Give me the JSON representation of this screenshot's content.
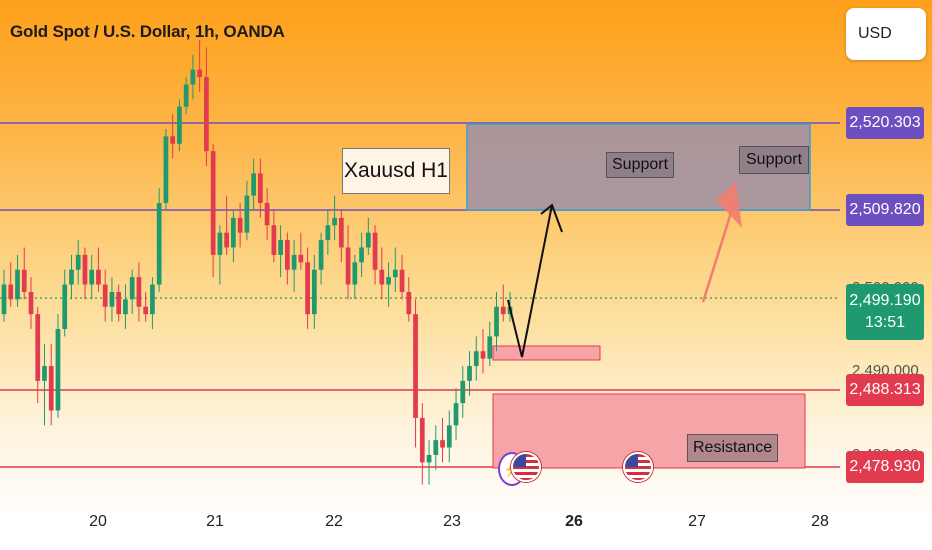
{
  "header": {
    "title": "Gold Spot / U.S. Dollar, 1h, OANDA",
    "currency_button": "USD"
  },
  "price_labels": {
    "level_1": "2,520.303",
    "level_2": "2,509.820",
    "current_price": "2,499.190",
    "countdown": "13:51",
    "level_3": "2,488.313",
    "level_4": "2,478.930",
    "faded_1": "2,500.000",
    "faded_2": "2,490.000",
    "faded_3": "2,480.000"
  },
  "annotations": {
    "main_label": "Xauusd H1",
    "support_1": "Support",
    "support_2": "Support",
    "resistance": "Resistance"
  },
  "colors": {
    "up_candle": "#1e9a6e",
    "down_candle": "#e23a4f",
    "purple_line": "#6e4fc0",
    "red_line": "#e23a4f"
  },
  "chart_data": {
    "type": "candlestick",
    "title": "Gold Spot / U.S. Dollar, 1h, OANDA",
    "x_tick_labels": [
      "20",
      "21",
      "22",
      "23",
      "26",
      "27",
      "28"
    ],
    "y_range": [
      2474,
      2535
    ],
    "horizontal_levels": [
      {
        "price": 2520.303,
        "color": "purple"
      },
      {
        "price": 2509.82,
        "color": "purple"
      },
      {
        "price": 2488.313,
        "color": "red"
      },
      {
        "price": 2478.93,
        "color": "red"
      }
    ],
    "current_price": 2499.19,
    "candles": [
      {
        "o": 2498,
        "h": 2504,
        "l": 2497,
        "c": 2502
      },
      {
        "o": 2502,
        "h": 2505,
        "l": 2499,
        "c": 2500
      },
      {
        "o": 2500,
        "h": 2506,
        "l": 2499,
        "c": 2504
      },
      {
        "o": 2504,
        "h": 2507,
        "l": 2500,
        "c": 2501
      },
      {
        "o": 2501,
        "h": 2503,
        "l": 2496,
        "c": 2498
      },
      {
        "o": 2498,
        "h": 2499,
        "l": 2486,
        "c": 2489
      },
      {
        "o": 2489,
        "h": 2494,
        "l": 2483,
        "c": 2491
      },
      {
        "o": 2491,
        "h": 2494,
        "l": 2483,
        "c": 2485
      },
      {
        "o": 2485,
        "h": 2498,
        "l": 2484,
        "c": 2496
      },
      {
        "o": 2496,
        "h": 2504,
        "l": 2495,
        "c": 2502
      },
      {
        "o": 2502,
        "h": 2506,
        "l": 2500,
        "c": 2504
      },
      {
        "o": 2504,
        "h": 2508,
        "l": 2502,
        "c": 2506
      },
      {
        "o": 2506,
        "h": 2507,
        "l": 2500,
        "c": 2502
      },
      {
        "o": 2502,
        "h": 2506,
        "l": 2500,
        "c": 2504
      },
      {
        "o": 2504,
        "h": 2507,
        "l": 2501,
        "c": 2502
      },
      {
        "o": 2502,
        "h": 2504,
        "l": 2497,
        "c": 2499
      },
      {
        "o": 2499,
        "h": 2503,
        "l": 2497,
        "c": 2501
      },
      {
        "o": 2501,
        "h": 2502,
        "l": 2497,
        "c": 2498
      },
      {
        "o": 2498,
        "h": 2502,
        "l": 2496,
        "c": 2500
      },
      {
        "o": 2500,
        "h": 2504,
        "l": 2498,
        "c": 2503
      },
      {
        "o": 2503,
        "h": 2505,
        "l": 2497,
        "c": 2499
      },
      {
        "o": 2499,
        "h": 2501,
        "l": 2497,
        "c": 2498
      },
      {
        "o": 2498,
        "h": 2503,
        "l": 2496,
        "c": 2502
      },
      {
        "o": 2502,
        "h": 2515,
        "l": 2501,
        "c": 2513
      },
      {
        "o": 2513,
        "h": 2523,
        "l": 2512,
        "c": 2522
      },
      {
        "o": 2522,
        "h": 2525,
        "l": 2519,
        "c": 2521
      },
      {
        "o": 2521,
        "h": 2527,
        "l": 2520,
        "c": 2526
      },
      {
        "o": 2526,
        "h": 2530,
        "l": 2525,
        "c": 2529
      },
      {
        "o": 2529,
        "h": 2533,
        "l": 2527,
        "c": 2531
      },
      {
        "o": 2531,
        "h": 2535,
        "l": 2528,
        "c": 2530
      },
      {
        "o": 2530,
        "h": 2534,
        "l": 2518,
        "c": 2520
      },
      {
        "o": 2520,
        "h": 2521,
        "l": 2503,
        "c": 2506
      },
      {
        "o": 2506,
        "h": 2510,
        "l": 2502,
        "c": 2509
      },
      {
        "o": 2509,
        "h": 2514,
        "l": 2506,
        "c": 2507
      },
      {
        "o": 2507,
        "h": 2512,
        "l": 2505,
        "c": 2511
      },
      {
        "o": 2511,
        "h": 2513,
        "l": 2507,
        "c": 2509
      },
      {
        "o": 2509,
        "h": 2516,
        "l": 2508,
        "c": 2514
      },
      {
        "o": 2514,
        "h": 2519,
        "l": 2512,
        "c": 2517
      },
      {
        "o": 2517,
        "h": 2519,
        "l": 2511,
        "c": 2513
      },
      {
        "o": 2513,
        "h": 2515,
        "l": 2508,
        "c": 2510
      },
      {
        "o": 2510,
        "h": 2512,
        "l": 2505,
        "c": 2506
      },
      {
        "o": 2506,
        "h": 2510,
        "l": 2503,
        "c": 2508
      },
      {
        "o": 2508,
        "h": 2509,
        "l": 2502,
        "c": 2504
      },
      {
        "o": 2504,
        "h": 2508,
        "l": 2501,
        "c": 2506
      },
      {
        "o": 2506,
        "h": 2509,
        "l": 2504,
        "c": 2505
      },
      {
        "o": 2505,
        "h": 2507,
        "l": 2496,
        "c": 2498
      },
      {
        "o": 2498,
        "h": 2506,
        "l": 2496,
        "c": 2504
      },
      {
        "o": 2504,
        "h": 2509,
        "l": 2502,
        "c": 2508
      },
      {
        "o": 2508,
        "h": 2512,
        "l": 2506,
        "c": 2510
      },
      {
        "o": 2510,
        "h": 2514,
        "l": 2508,
        "c": 2511
      },
      {
        "o": 2511,
        "h": 2512,
        "l": 2505,
        "c": 2507
      },
      {
        "o": 2507,
        "h": 2510,
        "l": 2500,
        "c": 2502
      },
      {
        "o": 2502,
        "h": 2506,
        "l": 2500,
        "c": 2505
      },
      {
        "o": 2505,
        "h": 2509,
        "l": 2503,
        "c": 2507
      },
      {
        "o": 2507,
        "h": 2511,
        "l": 2506,
        "c": 2509
      },
      {
        "o": 2509,
        "h": 2510,
        "l": 2502,
        "c": 2504
      },
      {
        "o": 2504,
        "h": 2507,
        "l": 2500,
        "c": 2502
      },
      {
        "o": 2502,
        "h": 2505,
        "l": 2499,
        "c": 2503
      },
      {
        "o": 2503,
        "h": 2507,
        "l": 2501,
        "c": 2504
      },
      {
        "o": 2504,
        "h": 2506,
        "l": 2500,
        "c": 2501
      },
      {
        "o": 2501,
        "h": 2503,
        "l": 2497,
        "c": 2498
      },
      {
        "o": 2498,
        "h": 2500,
        "l": 2480,
        "c": 2484
      },
      {
        "o": 2484,
        "h": 2486,
        "l": 2475,
        "c": 2478
      },
      {
        "o": 2478,
        "h": 2481,
        "l": 2475,
        "c": 2479
      },
      {
        "o": 2479,
        "h": 2483,
        "l": 2477,
        "c": 2481
      },
      {
        "o": 2481,
        "h": 2484,
        "l": 2478,
        "c": 2480
      },
      {
        "o": 2480,
        "h": 2485,
        "l": 2478,
        "c": 2483
      },
      {
        "o": 2483,
        "h": 2488,
        "l": 2481,
        "c": 2486
      },
      {
        "o": 2486,
        "h": 2491,
        "l": 2484,
        "c": 2489
      },
      {
        "o": 2489,
        "h": 2493,
        "l": 2487,
        "c": 2491
      },
      {
        "o": 2491,
        "h": 2495,
        "l": 2489,
        "c": 2493
      },
      {
        "o": 2493,
        "h": 2496,
        "l": 2490,
        "c": 2492
      },
      {
        "o": 2492,
        "h": 2497,
        "l": 2491,
        "c": 2495
      },
      {
        "o": 2495,
        "h": 2501,
        "l": 2493,
        "c": 2499
      },
      {
        "o": 2499,
        "h": 2502,
        "l": 2497,
        "c": 2498
      },
      {
        "o": 2498,
        "h": 2501,
        "l": 2497,
        "c": 2499
      }
    ]
  }
}
